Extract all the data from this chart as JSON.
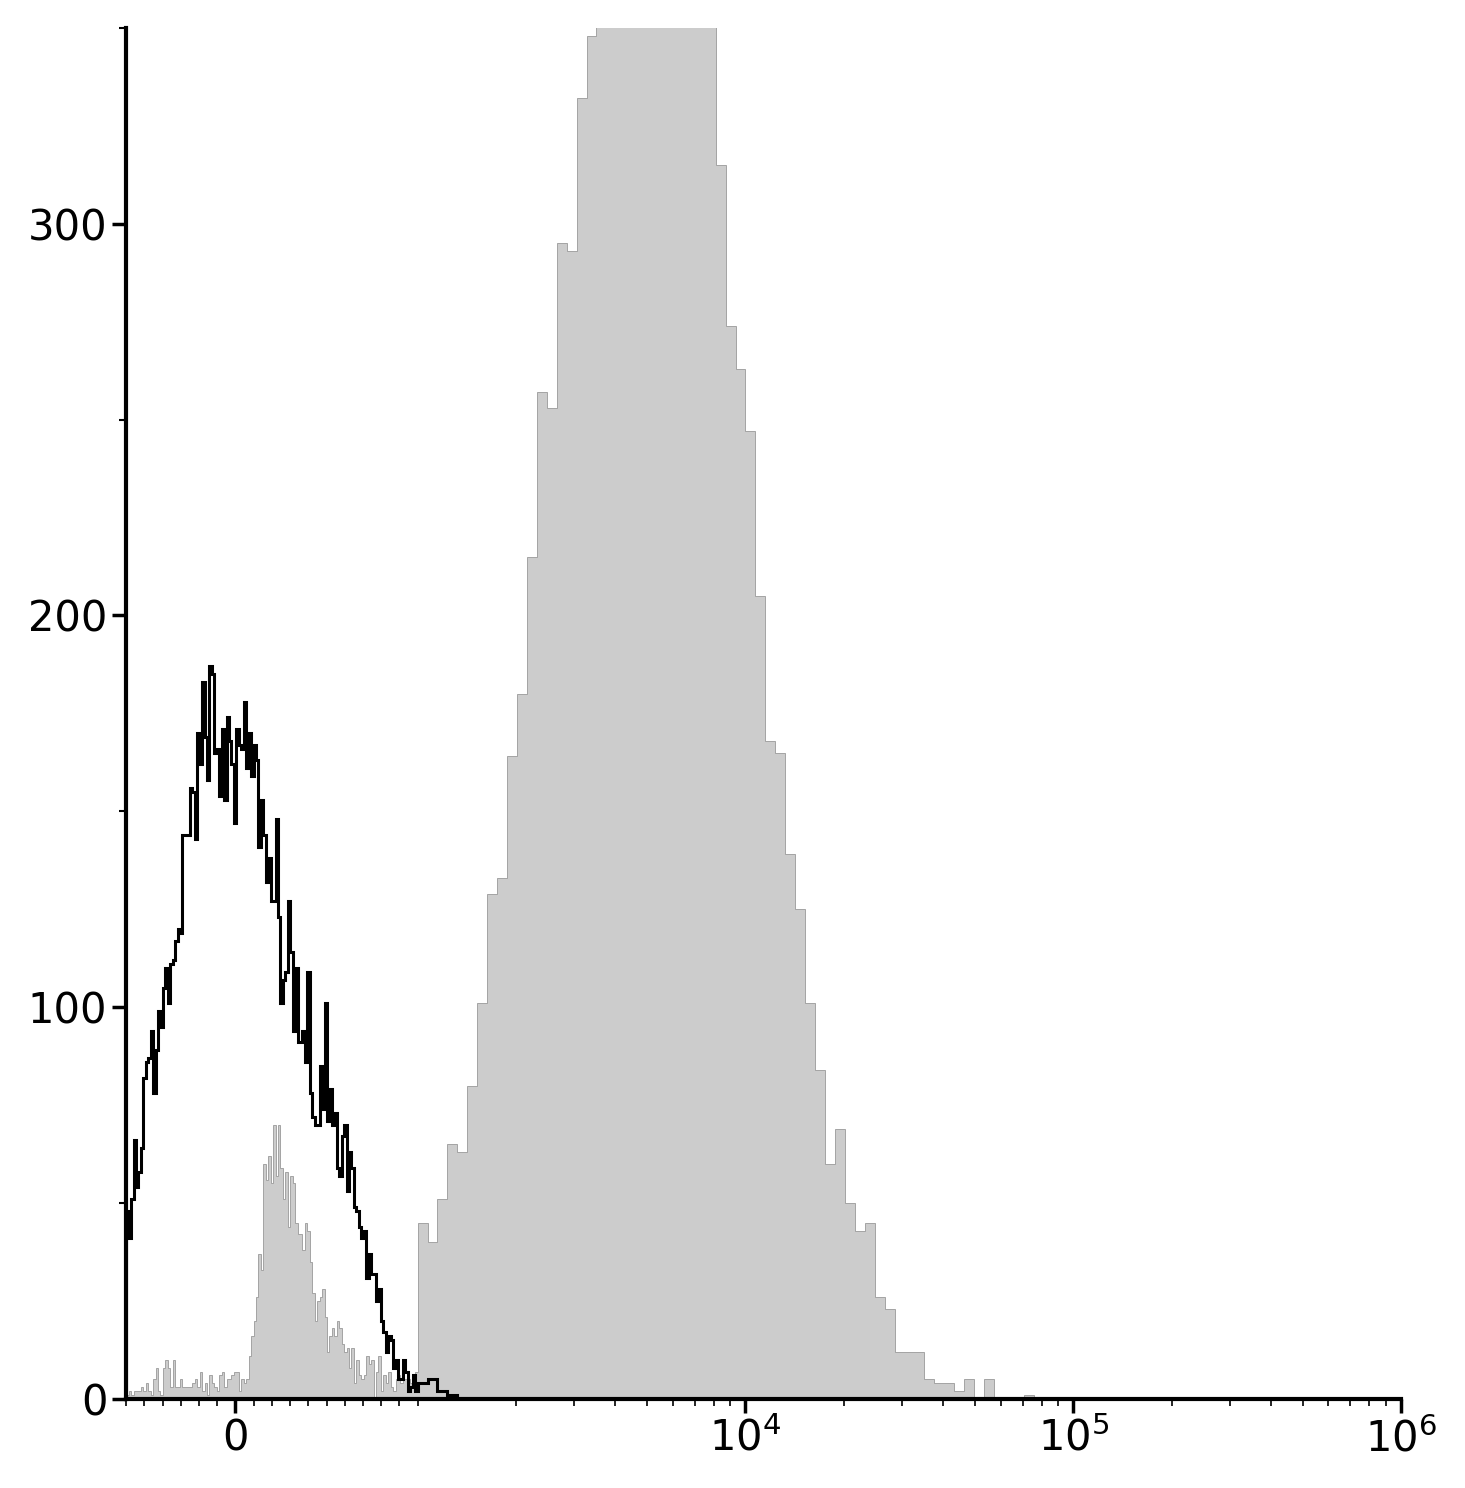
{
  "background_color": "#ffffff",
  "ylim": [
    0,
    350
  ],
  "yticks": [
    0,
    100,
    200,
    300
  ],
  "symlog_linthresh": 1000,
  "xmin": -600,
  "xmax": 1000000,
  "fig_width": 14.65,
  "fig_height": 14.88,
  "dpi": 100,
  "black_hist_color": "#000000",
  "gray_hist_fill": "#cccccc",
  "gray_hist_edge": "#999999",
  "spine_linewidth": 3.0,
  "tick_label_fontsize": 30
}
